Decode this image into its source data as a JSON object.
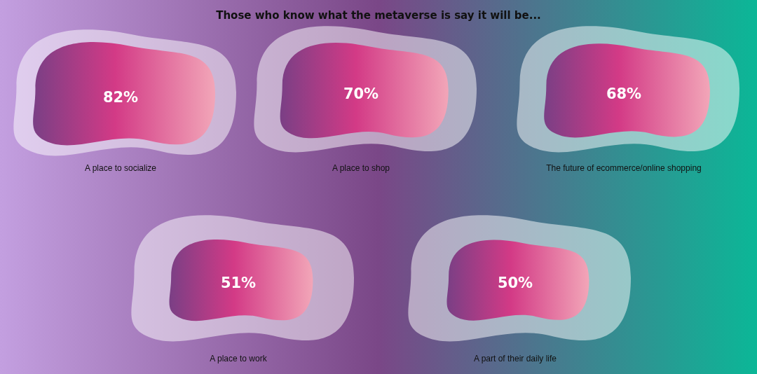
{
  "chart_data": {
    "type": "other",
    "title": "Those who know what the metaverse is say it will be...",
    "categories": [
      "A place to socialize",
      "A place to shop",
      "The future of ecommerce/online shopping",
      "A place to work",
      "A part of their daily life"
    ],
    "values": [
      82,
      70,
      68,
      51,
      50
    ],
    "value_labels": [
      "82%",
      "70%",
      "68%",
      "51%",
      "50%"
    ]
  }
}
